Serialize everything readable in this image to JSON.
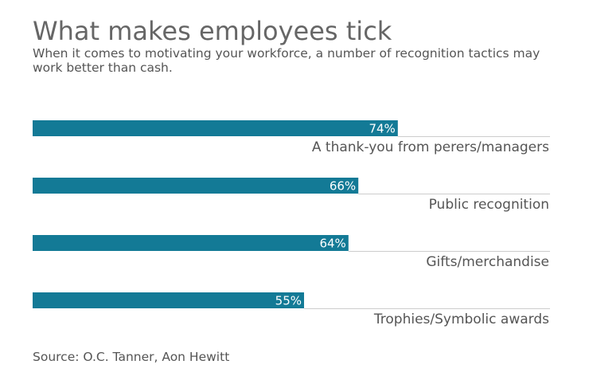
{
  "title": "What makes employees tick",
  "subtitle": "When it comes to motivating your workforce, a number of recognition tactics may work better than cash.",
  "source": "Source: O.C. Tanner, Aon Hewitt",
  "colors": {
    "bar": "#137a96",
    "baseline": "#cccccc",
    "text": "#555555"
  },
  "chart_data": {
    "type": "bar",
    "orientation": "horizontal",
    "categories": [
      "A thank-you from perers/managers",
      "Public recognition",
      "Gifts/merchandise",
      "Trophies/Symbolic awards"
    ],
    "values": [
      74,
      66,
      64,
      55
    ],
    "value_labels": [
      "74%",
      "66%",
      "64%",
      "55%"
    ],
    "xlim": [
      0,
      100
    ],
    "grid": false,
    "legend": "none"
  }
}
